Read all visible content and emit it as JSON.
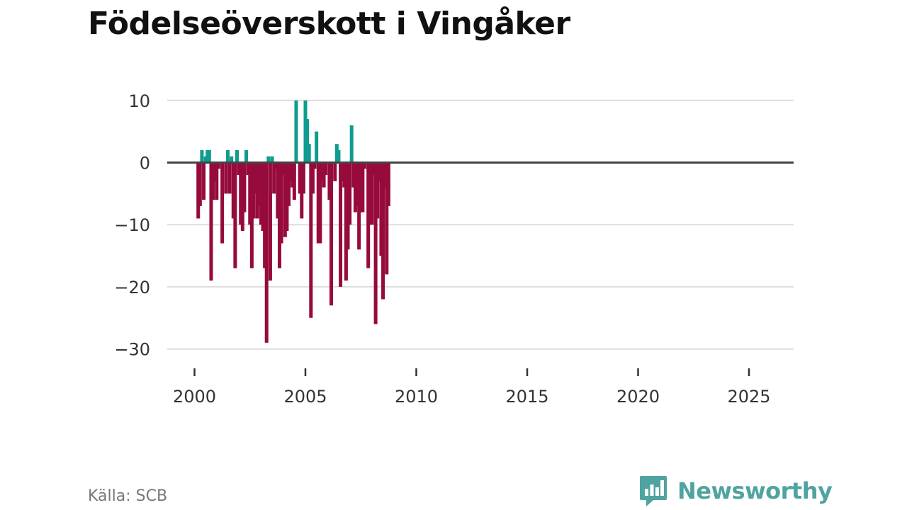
{
  "title": "Födelseöverskott i Vingåker",
  "source": "Källa: SCB",
  "brand": {
    "name": "Newsworthy",
    "logo_icon": "bar-chart-bubble-icon"
  },
  "colors": {
    "positive": "#0f9c90",
    "negative": "#960a3c",
    "grid": "#dddddd",
    "zero_line": "#444444",
    "text": "#333333",
    "brand": "#4fa3a0"
  },
  "chart_data": {
    "type": "bar",
    "title": "Födelseöverskott i Vingåker",
    "xlabel": "",
    "ylabel": "",
    "ylim": [
      -33,
      11
    ],
    "yticks": [
      10,
      0,
      -10,
      -20,
      -30
    ],
    "ytick_labels": [
      "10",
      "0",
      "−10",
      "−20",
      "−30"
    ],
    "x_range": [
      1998.3,
      2027.7
    ],
    "xticks": [
      2000,
      2005,
      2010,
      2015,
      2020,
      2025
    ],
    "xtick_labels": [
      "2000",
      "2005",
      "2010",
      "2015",
      "2020",
      "2025"
    ],
    "grid": true,
    "frequency": "monthly",
    "start": [
      2000,
      3
    ],
    "series": [
      {
        "name": "Födelseöverskott",
        "values": [
          -9,
          -7,
          2,
          -6,
          1,
          2,
          2,
          -19,
          -6,
          -3,
          -6,
          -1,
          0,
          -13,
          0,
          -5,
          2,
          -5,
          1,
          -9,
          -17,
          2,
          -2,
          -10,
          -11,
          -8,
          2,
          -2,
          -10,
          -17,
          -9,
          -5,
          -9,
          -7,
          -10,
          -11,
          -17,
          -29,
          1,
          -19,
          1,
          -5,
          -1,
          -9,
          -17,
          -13,
          -2,
          -12,
          -11,
          -7,
          -3,
          -4,
          -6,
          10,
          0,
          -5,
          -9,
          -5,
          10,
          7,
          3,
          -25,
          -5,
          -1,
          5,
          -13,
          -13,
          -3,
          -4,
          -2,
          0,
          -6,
          -23,
          0,
          -3,
          3,
          2,
          -20,
          -3,
          -4,
          -19,
          -14,
          -10,
          6,
          -4,
          -8,
          -7,
          -14,
          -8,
          -8,
          -1,
          0,
          -17,
          -10,
          -10,
          -2,
          -26,
          -9,
          -3,
          -15,
          -22,
          -4,
          -18,
          -7
        ]
      }
    ]
  }
}
